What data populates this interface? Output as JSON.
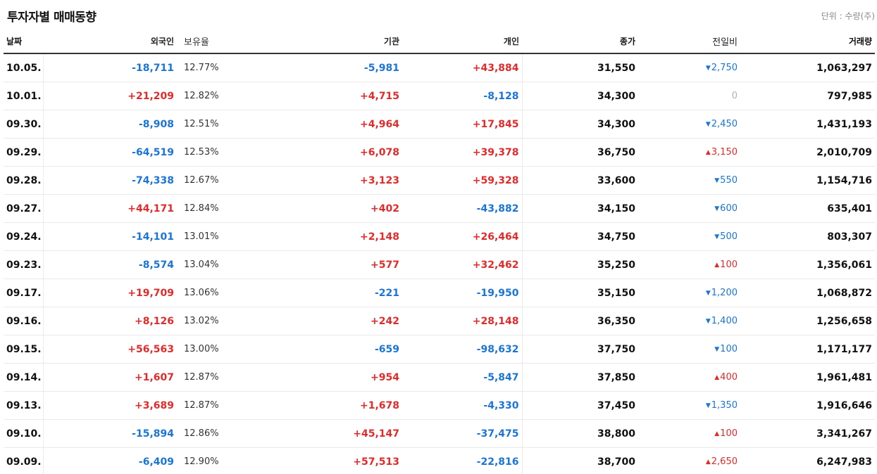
{
  "header": {
    "title": "투자자별 매매동향",
    "unit": "단위 : 수량(주)"
  },
  "columns": {
    "date": "날짜",
    "foreign": "외국인",
    "holding": "보유율",
    "institution": "기관",
    "individual": "개인",
    "close": "종가",
    "change": "전일비",
    "volume": "거래량"
  },
  "colors": {
    "up": "#e12b2b",
    "down": "#1a75d6",
    "flat": "#b0b0b0"
  },
  "rows": [
    {
      "date": "10.05.",
      "foreign": "-18,711",
      "holding": "12.77%",
      "institution": "-5,981",
      "individual": "+43,884",
      "close": "31,550",
      "change_dir": "down",
      "change": "2,750",
      "volume": "1,063,297"
    },
    {
      "date": "10.01.",
      "foreign": "+21,209",
      "holding": "12.82%",
      "institution": "+4,715",
      "individual": "-8,128",
      "close": "34,300",
      "change_dir": "flat",
      "change": "0",
      "volume": "797,985"
    },
    {
      "date": "09.30.",
      "foreign": "-8,908",
      "holding": "12.51%",
      "institution": "+4,964",
      "individual": "+17,845",
      "close": "34,300",
      "change_dir": "down",
      "change": "2,450",
      "volume": "1,431,193"
    },
    {
      "date": "09.29.",
      "foreign": "-64,519",
      "holding": "12.53%",
      "institution": "+6,078",
      "individual": "+39,378",
      "close": "36,750",
      "change_dir": "up",
      "change": "3,150",
      "volume": "2,010,709"
    },
    {
      "date": "09.28.",
      "foreign": "-74,338",
      "holding": "12.67%",
      "institution": "+3,123",
      "individual": "+59,328",
      "close": "33,600",
      "change_dir": "down",
      "change": "550",
      "volume": "1,154,716"
    },
    {
      "date": "09.27.",
      "foreign": "+44,171",
      "holding": "12.84%",
      "institution": "+402",
      "individual": "-43,882",
      "close": "34,150",
      "change_dir": "down",
      "change": "600",
      "volume": "635,401"
    },
    {
      "date": "09.24.",
      "foreign": "-14,101",
      "holding": "13.01%",
      "institution": "+2,148",
      "individual": "+26,464",
      "close": "34,750",
      "change_dir": "down",
      "change": "500",
      "volume": "803,307"
    },
    {
      "date": "09.23.",
      "foreign": "-8,574",
      "holding": "13.04%",
      "institution": "+577",
      "individual": "+32,462",
      "close": "35,250",
      "change_dir": "up",
      "change": "100",
      "volume": "1,356,061"
    },
    {
      "date": "09.17.",
      "foreign": "+19,709",
      "holding": "13.06%",
      "institution": "-221",
      "individual": "-19,950",
      "close": "35,150",
      "change_dir": "down",
      "change": "1,200",
      "volume": "1,068,872"
    },
    {
      "date": "09.16.",
      "foreign": "+8,126",
      "holding": "13.02%",
      "institution": "+242",
      "individual": "+28,148",
      "close": "36,350",
      "change_dir": "down",
      "change": "1,400",
      "volume": "1,256,658"
    },
    {
      "date": "09.15.",
      "foreign": "+56,563",
      "holding": "13.00%",
      "institution": "-659",
      "individual": "-98,632",
      "close": "37,750",
      "change_dir": "down",
      "change": "100",
      "volume": "1,171,177"
    },
    {
      "date": "09.14.",
      "foreign": "+1,607",
      "holding": "12.87%",
      "institution": "+954",
      "individual": "-5,847",
      "close": "37,850",
      "change_dir": "up",
      "change": "400",
      "volume": "1,961,481"
    },
    {
      "date": "09.13.",
      "foreign": "+3,689",
      "holding": "12.87%",
      "institution": "+1,678",
      "individual": "-4,330",
      "close": "37,450",
      "change_dir": "down",
      "change": "1,350",
      "volume": "1,916,646"
    },
    {
      "date": "09.10.",
      "foreign": "-15,894",
      "holding": "12.86%",
      "institution": "+45,147",
      "individual": "-37,475",
      "close": "38,800",
      "change_dir": "up",
      "change": "100",
      "volume": "3,341,267"
    },
    {
      "date": "09.09.",
      "foreign": "-6,409",
      "holding": "12.90%",
      "institution": "+57,513",
      "individual": "-22,816",
      "close": "38,700",
      "change_dir": "up",
      "change": "2,650",
      "volume": "6,247,983"
    }
  ]
}
